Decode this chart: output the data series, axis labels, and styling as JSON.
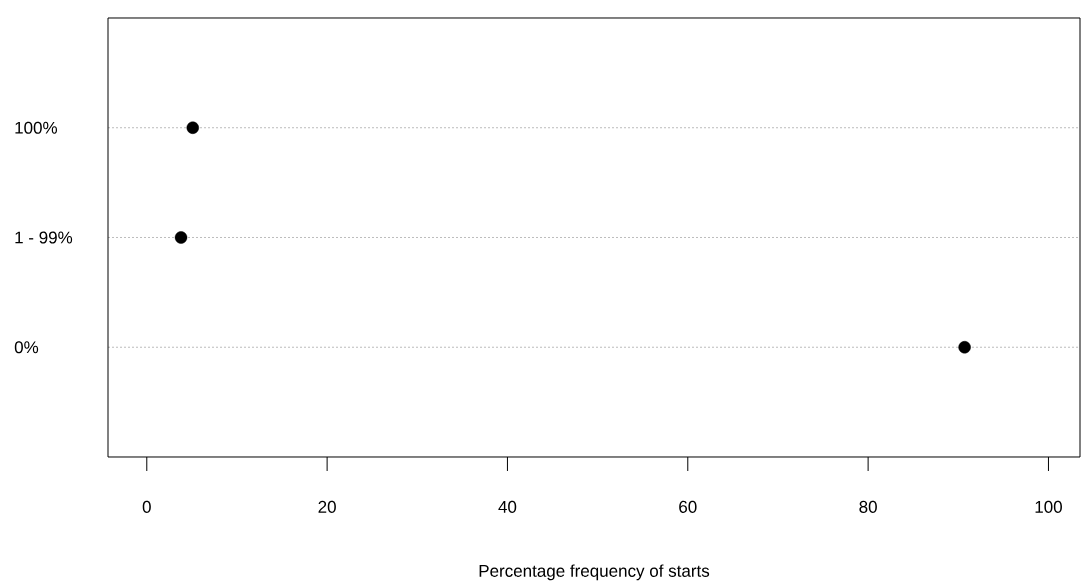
{
  "chart_data": {
    "type": "scatter",
    "orientation": "horizontal",
    "categories": [
      "100%",
      "1 - 99%",
      "0%"
    ],
    "values": [
      5.1,
      3.8,
      90.7
    ],
    "color": "#000000",
    "xlabel": "Percentage frequency of starts",
    "xlim": [
      -4.3,
      103.5
    ],
    "xticks": [
      0,
      20,
      40,
      60,
      80,
      100
    ],
    "grid": "y"
  }
}
